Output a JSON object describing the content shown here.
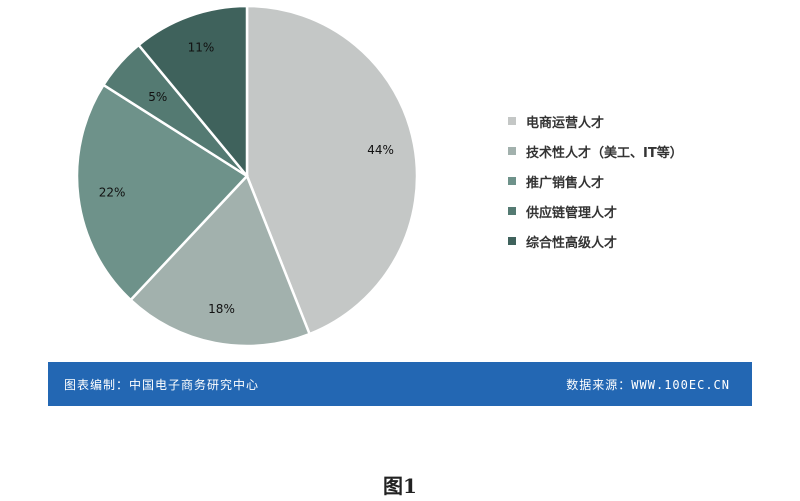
{
  "chart_data": {
    "type": "pie",
    "start_angle_deg": 0,
    "direction": "clockwise",
    "slices": [
      {
        "label": "电商运营人才",
        "value": 44,
        "display": "44%",
        "color": "#c4c7c6"
      },
      {
        "label": "技术性人才（美工、IT等）",
        "value": 18,
        "display": "18%",
        "color": "#a2b1ad"
      },
      {
        "label": "推广销售人才",
        "value": 22,
        "display": "22%",
        "color": "#6e928a"
      },
      {
        "label": "供应链管理人才",
        "value": 5,
        "display": "5%",
        "color": "#547a72"
      },
      {
        "label": "综合性高级人才",
        "value": 11,
        "display": "11%",
        "color": "#3f625c"
      }
    ],
    "legend_position": "right"
  },
  "banner": {
    "credit": "图表编制：中国电子商务研究中心",
    "source": "数据来源：WWW.100EC.CN",
    "color": "#2367b3"
  },
  "caption": "图1"
}
